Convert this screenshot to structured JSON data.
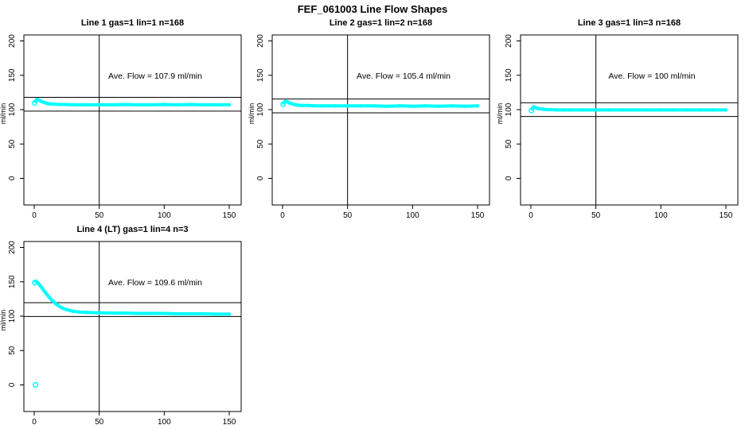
{
  "header": {
    "title": "FEF_061003  Line Flow Shapes"
  },
  "colors": {
    "marker": "#00ffff",
    "axis": "#000000",
    "background": "#ffffff"
  },
  "chart_data": [
    {
      "type": "scatter",
      "title": "Line 1 gas=1 lin=1 n=168",
      "annotation": "Ave. Flow =  107.9  ml/min",
      "avg_flow": 107.9,
      "ylabel": "ml/min",
      "xticks": [
        0,
        50,
        100,
        150
      ],
      "yticks": [
        0,
        50,
        100,
        150,
        200
      ],
      "xlim": [
        0,
        150
      ],
      "ylim": [
        0,
        200
      ],
      "vline_x": 50,
      "hlines": [
        117.9,
        97.9
      ],
      "first_point": [
        1,
        112
      ],
      "extra_points": [],
      "points": [
        [
          1,
          112
        ],
        [
          2,
          115
        ],
        [
          3,
          114.5
        ],
        [
          4,
          113.5
        ],
        [
          5,
          112.5
        ],
        [
          6,
          111.5
        ],
        [
          8,
          110
        ],
        [
          10,
          109
        ],
        [
          12,
          108.5
        ],
        [
          15,
          108
        ],
        [
          20,
          107.5
        ],
        [
          25,
          107.5
        ],
        [
          30,
          107
        ],
        [
          40,
          107
        ],
        [
          50,
          107
        ],
        [
          60,
          107
        ],
        [
          70,
          107.5
        ],
        [
          80,
          107
        ],
        [
          90,
          107
        ],
        [
          100,
          107.5
        ],
        [
          110,
          107
        ],
        [
          120,
          107.5
        ],
        [
          130,
          107
        ],
        [
          140,
          107
        ],
        [
          150,
          107
        ]
      ]
    },
    {
      "type": "scatter",
      "title": "Line 2 gas=1 lin=2 n=168",
      "annotation": "Ave. Flow =  105.4  ml/min",
      "avg_flow": 105.4,
      "ylabel": "ml/min",
      "xticks": [
        0,
        50,
        100,
        150
      ],
      "yticks": [
        0,
        50,
        100,
        150,
        200
      ],
      "xlim": [
        0,
        150
      ],
      "ylim": [
        0,
        200
      ],
      "vline_x": 50,
      "hlines": [
        115.4,
        95.4
      ],
      "first_point": [
        1,
        110
      ],
      "extra_points": [],
      "points": [
        [
          1,
          110
        ],
        [
          2,
          112
        ],
        [
          3,
          112
        ],
        [
          4,
          111
        ],
        [
          5,
          110
        ],
        [
          6,
          109
        ],
        [
          8,
          108
        ],
        [
          10,
          107
        ],
        [
          12,
          106.5
        ],
        [
          15,
          106
        ],
        [
          20,
          106
        ],
        [
          25,
          105.5
        ],
        [
          30,
          105.5
        ],
        [
          40,
          105.5
        ],
        [
          50,
          105.5
        ],
        [
          60,
          105.5
        ],
        [
          70,
          105.5
        ],
        [
          80,
          105
        ],
        [
          90,
          105.5
        ],
        [
          100,
          105
        ],
        [
          110,
          105.5
        ],
        [
          120,
          105
        ],
        [
          130,
          105.5
        ],
        [
          140,
          105
        ],
        [
          150,
          105.5
        ]
      ]
    },
    {
      "type": "scatter",
      "title": "Line 3 gas=1 lin=3 n=168",
      "annotation": "Ave. Flow =  100  ml/min",
      "avg_flow": 100,
      "ylabel": "ml/min",
      "xticks": [
        0,
        50,
        100,
        150
      ],
      "yticks": [
        0,
        50,
        100,
        150,
        200
      ],
      "xlim": [
        0,
        150
      ],
      "ylim": [
        0,
        200
      ],
      "vline_x": 50,
      "hlines": [
        110,
        90
      ],
      "first_point": [
        1,
        101
      ],
      "extra_points": [],
      "points": [
        [
          1,
          101
        ],
        [
          2,
          104
        ],
        [
          3,
          103.5
        ],
        [
          4,
          102.5
        ],
        [
          5,
          102
        ],
        [
          6,
          101.5
        ],
        [
          8,
          101
        ],
        [
          10,
          100.5
        ],
        [
          12,
          100
        ],
        [
          15,
          100
        ],
        [
          20,
          99.5
        ],
        [
          25,
          99.5
        ],
        [
          30,
          99.5
        ],
        [
          40,
          99.5
        ],
        [
          50,
          99.5
        ],
        [
          60,
          99.5
        ],
        [
          70,
          99.5
        ],
        [
          80,
          99.5
        ],
        [
          90,
          99.5
        ],
        [
          100,
          99.5
        ],
        [
          110,
          99.5
        ],
        [
          120,
          99.5
        ],
        [
          130,
          99.5
        ],
        [
          140,
          99.5
        ],
        [
          150,
          99.5
        ]
      ]
    },
    {
      "type": "scatter",
      "title": "Line 4 (LT) gas=1 lin=4 n=3",
      "annotation": "Ave. Flow =  109.6  ml/min",
      "avg_flow": 109.6,
      "ylabel": "ml/min",
      "xticks": [
        0,
        50,
        100,
        150
      ],
      "yticks": [
        0,
        50,
        100,
        150,
        200
      ],
      "xlim": [
        0,
        150
      ],
      "ylim": [
        0,
        200
      ],
      "vline_x": 50,
      "hlines": [
        119.6,
        99.6
      ],
      "first_point": [
        1,
        151
      ],
      "extra_points": [
        [
          1,
          0
        ]
      ],
      "points": [
        [
          1,
          151
        ],
        [
          2,
          150
        ],
        [
          3,
          148
        ],
        [
          4,
          146
        ],
        [
          5,
          143.5
        ],
        [
          6,
          141
        ],
        [
          7,
          138.5
        ],
        [
          8,
          136
        ],
        [
          9,
          133.5
        ],
        [
          10,
          131
        ],
        [
          12,
          126.5
        ],
        [
          14,
          122.5
        ],
        [
          16,
          119
        ],
        [
          18,
          116
        ],
        [
          20,
          113.5
        ],
        [
          22,
          111.5
        ],
        [
          25,
          109.5
        ],
        [
          30,
          107
        ],
        [
          35,
          106
        ],
        [
          40,
          105.5
        ],
        [
          50,
          105
        ],
        [
          60,
          104.5
        ],
        [
          70,
          104.5
        ],
        [
          80,
          104
        ],
        [
          90,
          104
        ],
        [
          100,
          104
        ],
        [
          110,
          103.5
        ],
        [
          120,
          103.5
        ],
        [
          130,
          103.5
        ],
        [
          140,
          103
        ],
        [
          150,
          103
        ]
      ]
    }
  ]
}
